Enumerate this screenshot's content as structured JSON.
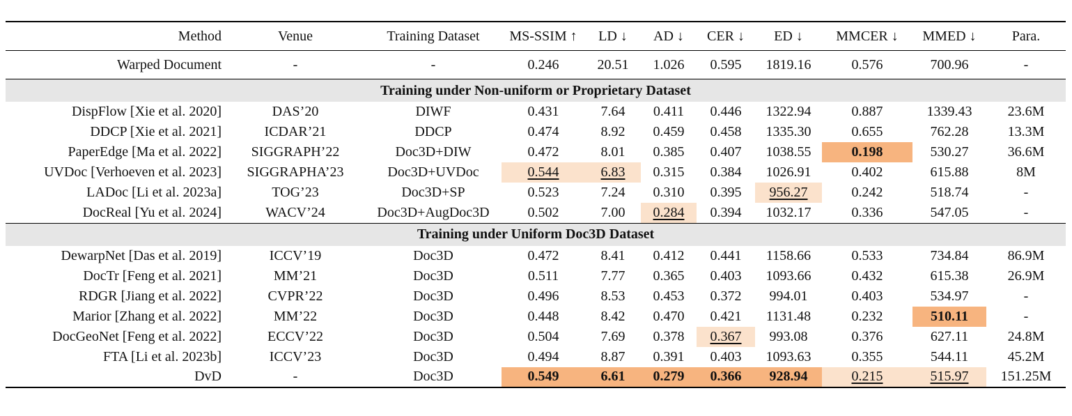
{
  "columns": [
    "Method",
    "Venue",
    "Training Dataset",
    "MS-SSIM ↑",
    "LD ↓",
    "AD ↓",
    "CER ↓",
    "ED ↓",
    "MMCER ↓",
    "MMED ↓",
    "Para."
  ],
  "warped": [
    "Warped Document",
    "-",
    "-",
    "0.246",
    "20.51",
    "1.026",
    "0.595",
    "1819.16",
    "0.576",
    "700.96",
    "-"
  ],
  "section1": {
    "title": "Training under Non-uniform or Proprietary Dataset",
    "rows": [
      [
        "DispFlow [Xie et al. 2020]",
        "DAS’20",
        "DIWF",
        "0.431",
        "7.64",
        "0.411",
        "0.446",
        "1322.94",
        "0.887",
        "1339.43",
        "23.6M"
      ],
      [
        "DDCP [Xie et al. 2021]",
        "ICDAR’21",
        "DDCP",
        "0.474",
        "8.92",
        "0.459",
        "0.458",
        "1335.30",
        "0.655",
        "762.28",
        "13.3M"
      ],
      [
        "PaperEdge [Ma et al. 2022]",
        "SIGGRAPH’22",
        "Doc3D+DIW",
        "0.472",
        "8.01",
        "0.385",
        "0.407",
        "1038.55",
        "0.198",
        "530.27",
        "36.6M"
      ],
      [
        "UVDoc [Verhoeven et al. 2023]",
        "SIGGRAPHA’23",
        "Doc3D+UVDoc",
        "0.544",
        "6.83",
        "0.315",
        "0.384",
        "1026.91",
        "0.402",
        "615.88",
        "8M"
      ],
      [
        "LADoc [Li et al. 2023a]",
        "TOG’23",
        "Doc3D+SP",
        "0.523",
        "7.24",
        "0.310",
        "0.395",
        "956.27",
        "0.242",
        "518.74",
        "-"
      ],
      [
        "DocReal [Yu et al. 2024]",
        "WACV’24",
        "Doc3D+AugDoc3D",
        "0.502",
        "7.00",
        "0.284",
        "0.394",
        "1032.17",
        "0.336",
        "547.05",
        "-"
      ]
    ]
  },
  "section2": {
    "title": "Training under Uniform Doc3D Dataset",
    "rows": [
      [
        "DewarpNet [Das et al. 2019]",
        "ICCV’19",
        "Doc3D",
        "0.472",
        "8.41",
        "0.412",
        "0.441",
        "1158.66",
        "0.533",
        "734.84",
        "86.9M"
      ],
      [
        "DocTr [Feng et al. 2021]",
        "MM’21",
        "Doc3D",
        "0.511",
        "7.77",
        "0.365",
        "0.403",
        "1093.66",
        "0.432",
        "615.38",
        "26.9M"
      ],
      [
        "RDGR [Jiang et al. 2022]",
        "CVPR’22",
        "Doc3D",
        "0.496",
        "8.53",
        "0.453",
        "0.372",
        "994.01",
        "0.403",
        "534.97",
        "-"
      ],
      [
        "Marior [Zhang et al. 2022]",
        "MM’22",
        "Doc3D",
        "0.448",
        "8.42",
        "0.470",
        "0.421",
        "1131.48",
        "0.232",
        "510.11",
        "-"
      ],
      [
        "DocGeoNet [Feng et al. 2022]",
        "ECCV’22",
        "Doc3D",
        "0.504",
        "7.69",
        "0.378",
        "0.367",
        "993.08",
        "0.376",
        "627.11",
        "24.8M"
      ],
      [
        "FTA [Li et al. 2023b]",
        "ICCV’23",
        "Doc3D",
        "0.494",
        "8.87",
        "0.391",
        "0.403",
        "1093.63",
        "0.355",
        "544.11",
        "45.2M"
      ],
      [
        "DvD",
        "-",
        "Doc3D",
        "0.549",
        "6.61",
        "0.279",
        "0.366",
        "928.94",
        "0.215",
        "515.97",
        "151.25M"
      ]
    ]
  },
  "highlight_colors": {
    "best": "#f7b47f",
    "second": "#fbe2cc"
  }
}
